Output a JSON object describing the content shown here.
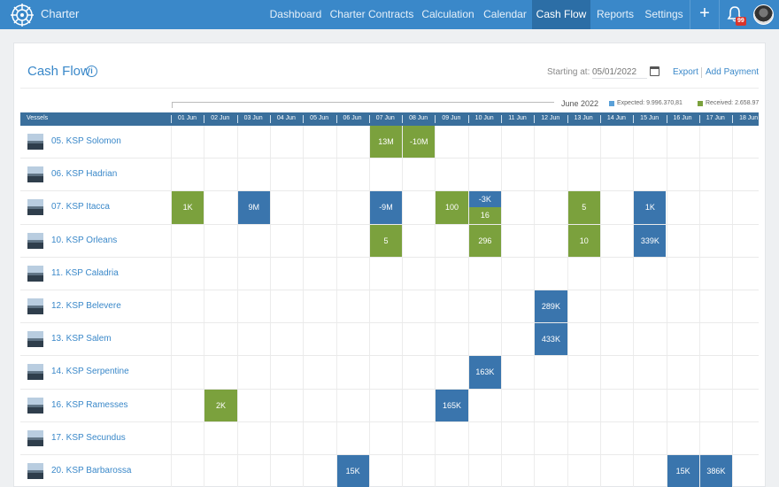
{
  "header": {
    "brand": "Charter",
    "nav": [
      {
        "label": "Dashboard",
        "active": false
      },
      {
        "label": "Charter Contracts",
        "active": false
      },
      {
        "label": "Calculation",
        "active": false
      },
      {
        "label": "Calendar",
        "active": false
      },
      {
        "label": "Cash Flow",
        "active": true
      },
      {
        "label": "Reports",
        "active": false
      },
      {
        "label": "Settings",
        "active": false
      }
    ],
    "plus_label": "+",
    "notification_count": "99"
  },
  "page": {
    "title": "Cash Flow",
    "info_symbol": "i",
    "starting_at_label": "Starting at:",
    "starting_at_placeholder": "05/01/2022",
    "export_label": "Export",
    "add_payment_label": "Add Payment"
  },
  "calendar": {
    "month": "June 2022",
    "legend_expected": "Expected: 9.996.370,81",
    "legend_received": "Received: 2.658.97",
    "colors": {
      "expected": "#3a75ad",
      "received": "#7ba13d"
    },
    "vessels_header": "Vessels",
    "days": [
      "01 Jun",
      "02 Jun",
      "03 Jun",
      "04 Jun",
      "05 Jun",
      "06 Jun",
      "07 Jun",
      "08 Jun",
      "09 Jun",
      "10 Jun",
      "11 Jun",
      "12 Jun",
      "13 Jun",
      "14 Jun",
      "15 Jun",
      "16 Jun",
      "17 Jun",
      "18 Jun"
    ]
  },
  "vessels": [
    {
      "name": "05. KSP Solomon"
    },
    {
      "name": "06. KSP Hadrian"
    },
    {
      "name": "07. KSP Itacca"
    },
    {
      "name": "10. KSP Orleans"
    },
    {
      "name": "11. KSP Caladria"
    },
    {
      "name": "12. KSP Belevere"
    },
    {
      "name": "13. KSP Salem"
    },
    {
      "name": "14. KSP Serpentine"
    },
    {
      "name": "16. KSP Ramesses"
    },
    {
      "name": "17. KSP Secundus"
    },
    {
      "name": "20. KSP Barbarossa"
    }
  ],
  "payments": [
    {
      "row": 0,
      "day": 6,
      "value": "13M",
      "kind": "received"
    },
    {
      "row": 0,
      "day": 7,
      "value": "-10M",
      "kind": "received"
    },
    {
      "row": 2,
      "day": 0,
      "value": "1K",
      "kind": "received"
    },
    {
      "row": 2,
      "day": 2,
      "value": "9M",
      "kind": "expected"
    },
    {
      "row": 2,
      "day": 6,
      "value": "-9M",
      "kind": "expected"
    },
    {
      "row": 2,
      "day": 8,
      "value": "100",
      "kind": "received"
    },
    {
      "row": 2,
      "day": 9,
      "value": "-3K",
      "kind": "expected",
      "part": "top"
    },
    {
      "row": 2,
      "day": 9,
      "value": "16",
      "kind": "received",
      "part": "bottom"
    },
    {
      "row": 2,
      "day": 12,
      "value": "5",
      "kind": "received"
    },
    {
      "row": 2,
      "day": 14,
      "value": "1K",
      "kind": "expected"
    },
    {
      "row": 3,
      "day": 6,
      "value": "5",
      "kind": "received"
    },
    {
      "row": 3,
      "day": 9,
      "value": "296",
      "kind": "received"
    },
    {
      "row": 3,
      "day": 12,
      "value": "10",
      "kind": "received"
    },
    {
      "row": 3,
      "day": 14,
      "value": "339K",
      "kind": "expected"
    },
    {
      "row": 5,
      "day": 11,
      "value": "289K",
      "kind": "expected"
    },
    {
      "row": 6,
      "day": 11,
      "value": "433K",
      "kind": "expected"
    },
    {
      "row": 7,
      "day": 9,
      "value": "163K",
      "kind": "expected"
    },
    {
      "row": 8,
      "day": 1,
      "value": "2K",
      "kind": "received"
    },
    {
      "row": 8,
      "day": 8,
      "value": "165K",
      "kind": "expected"
    },
    {
      "row": 10,
      "day": 5,
      "value": "15K",
      "kind": "expected"
    },
    {
      "row": 10,
      "day": 15,
      "value": "15K",
      "kind": "expected"
    },
    {
      "row": 10,
      "day": 16,
      "value": "386K",
      "kind": "expected"
    }
  ]
}
